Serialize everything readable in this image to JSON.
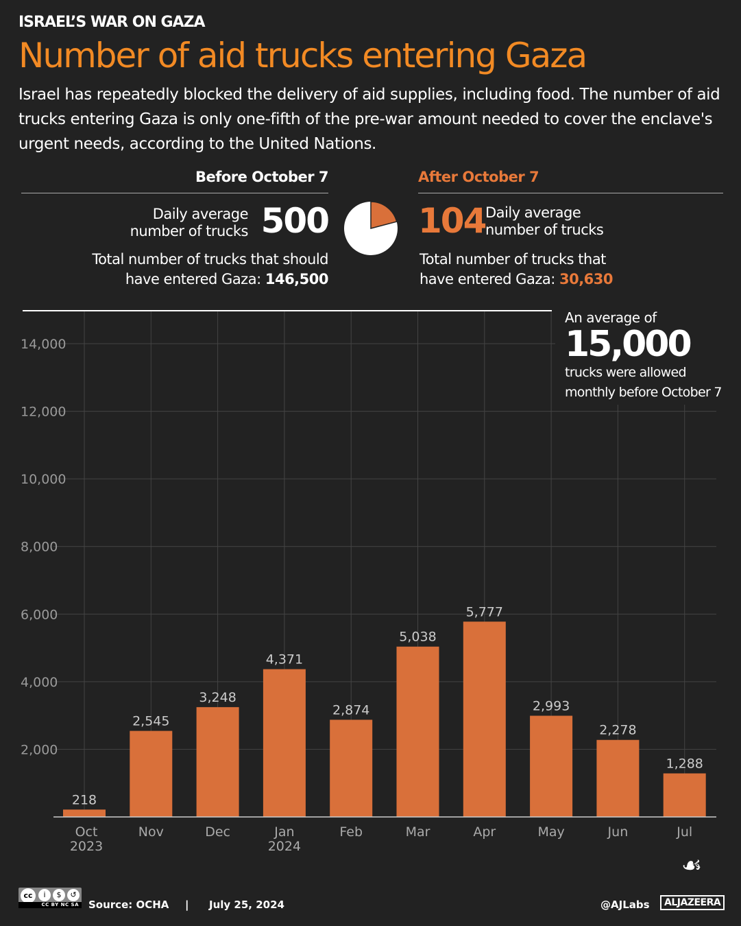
{
  "kicker": "ISRAEL’S WAR ON GAZA",
  "title": "Number of aid trucks entering Gaza",
  "subtitle": "Israel has repeatedly blocked the delivery of aid supplies, including food. The number of aid trucks entering Gaza is only one-fifth of the pre-war amount needed to cover the enclave's urgent needs, according to the United Nations.",
  "before": {
    "heading": "Before October 7",
    "daily_label_1": "Daily average",
    "daily_label_2": "number of trucks",
    "daily_value": "500",
    "total_label_1": "Total number of trucks that should",
    "total_label_2": "have entered Gaza:",
    "total_value": "146,500"
  },
  "after": {
    "heading": "After October 7",
    "daily_label_1": "Daily average",
    "daily_label_2": "number of trucks",
    "daily_value": "104",
    "total_label_1": "Total number of trucks that",
    "total_label_2": "have entered Gaza:",
    "total_value": "30,630"
  },
  "pie": {
    "share_after": 0.209,
    "colors": {
      "after": "#d9703a",
      "before": "#ffffff"
    }
  },
  "annotation": {
    "line1": "An average of",
    "value": "15,000",
    "line2": "trucks were allowed",
    "line3": "monthly before October 7"
  },
  "chart_data": {
    "type": "bar",
    "categories": [
      "Oct 2023",
      "Nov",
      "Dec",
      "Jan 2024",
      "Feb",
      "Mar",
      "Apr",
      "May",
      "Jun",
      "Jul"
    ],
    "values": [
      218,
      2545,
      3248,
      4371,
      2874,
      5038,
      5777,
      2993,
      2278,
      1288
    ],
    "data_labels": [
      "218",
      "2,545",
      "3,248",
      "4,371",
      "2,874",
      "5,038",
      "5,777",
      "2,993",
      "2,278",
      "1,288"
    ],
    "yticks": [
      2000,
      4000,
      6000,
      8000,
      10000,
      12000,
      14000
    ],
    "ytick_labels": [
      "2,000",
      "4,000",
      "6,000",
      "8,000",
      "10,000",
      "12,000",
      "14,000"
    ],
    "ylim": [
      0,
      14000
    ],
    "grid": true,
    "bar_color": "#d9703a",
    "title": "",
    "xlabel": "",
    "ylabel": ""
  },
  "footer": {
    "license": "CC BY NC SA",
    "source": "Source:  OCHA",
    "separator": "|",
    "date": "July 25, 2024",
    "handle": "@AJLabs",
    "brand": "ALJAZEERA"
  }
}
